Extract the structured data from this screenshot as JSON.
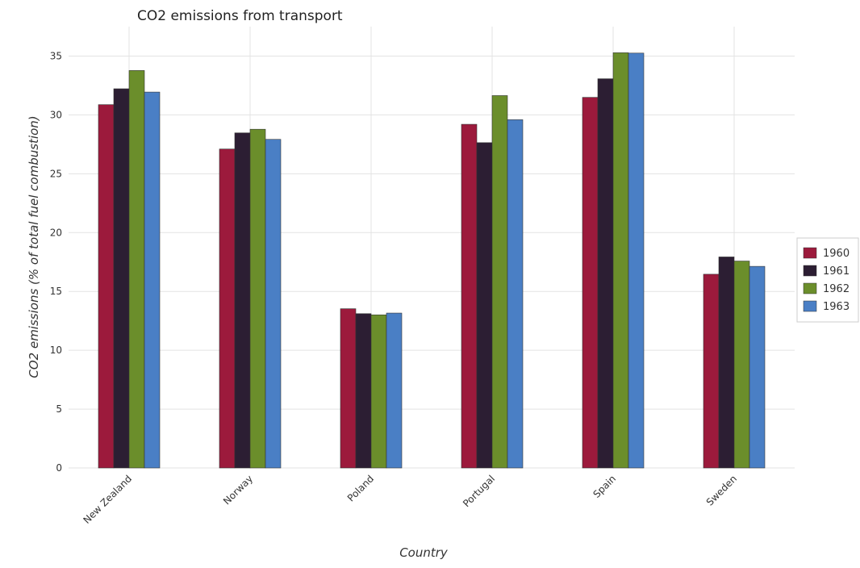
{
  "chart_data": {
    "type": "bar",
    "title": "CO2 emissions from transport",
    "xlabel": "Country",
    "ylabel": "CO2 emissions (% of total fuel combustion)",
    "categories": [
      "New Zealand",
      "Norway",
      "Poland",
      "Portugal",
      "Spain",
      "Sweden"
    ],
    "ylim": [
      0,
      37.5
    ],
    "yticks": [
      0,
      5,
      10,
      15,
      20,
      25,
      30,
      35
    ],
    "grid": true,
    "legend_position": "right",
    "series": [
      {
        "name": "1960",
        "color": "#9c1a3c",
        "values": [
          30.87,
          27.1,
          13.53,
          29.2,
          31.49,
          16.46
        ]
      },
      {
        "name": "1961",
        "color": "#2c1e33",
        "values": [
          32.22,
          28.47,
          13.11,
          27.64,
          33.07,
          17.93
        ]
      },
      {
        "name": "1962",
        "color": "#6b8e2b",
        "values": [
          33.77,
          28.78,
          13.01,
          31.64,
          35.28,
          17.58
        ]
      },
      {
        "name": "1963",
        "color": "#4a7fc5",
        "values": [
          31.94,
          27.92,
          13.16,
          29.59,
          35.25,
          17.13
        ]
      }
    ]
  }
}
